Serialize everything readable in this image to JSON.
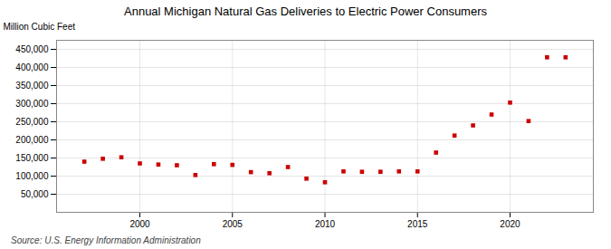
{
  "chart_data": {
    "type": "scatter",
    "title": "Annual Michigan Natural Gas Deliveries to Electric Power Consumers",
    "ylabel": "Million Cubic Feet",
    "annotations": [
      "Source: U.S. Energy Information Administration"
    ],
    "x": [
      1997,
      1998,
      1999,
      2000,
      2001,
      2002,
      2003,
      2004,
      2005,
      2006,
      2007,
      2008,
      2009,
      2010,
      2011,
      2012,
      2013,
      2014,
      2015,
      2016,
      2017,
      2018,
      2019,
      2020,
      2021,
      2022,
      2023
    ],
    "values": [
      140000,
      148000,
      152000,
      135000,
      132000,
      130000,
      103000,
      133000,
      131000,
      111000,
      108000,
      125000,
      93000,
      83000,
      113000,
      112000,
      112000,
      113000,
      113000,
      165000,
      212000,
      240000,
      270000,
      303000,
      252000,
      428000,
      428000
    ],
    "color": "#cc0000",
    "marker": "square",
    "xlim": [
      1995.5,
      2024.5
    ],
    "ylim": [
      0,
      475000
    ],
    "xticks": [
      2000,
      2005,
      2010,
      2015,
      2020
    ],
    "yticks": [
      {
        "value": 50000,
        "label": "50,000"
      },
      {
        "value": 100000,
        "label": "100,000"
      },
      {
        "value": 150000,
        "label": "150,000"
      },
      {
        "value": 200000,
        "label": "200,000"
      },
      {
        "value": 250000,
        "label": "250,000"
      },
      {
        "value": 300000,
        "label": "300,000"
      },
      {
        "value": 350000,
        "label": "350,000"
      },
      {
        "value": 400000,
        "label": "400,000"
      },
      {
        "value": 450000,
        "label": "450,000"
      }
    ],
    "grid": true
  }
}
